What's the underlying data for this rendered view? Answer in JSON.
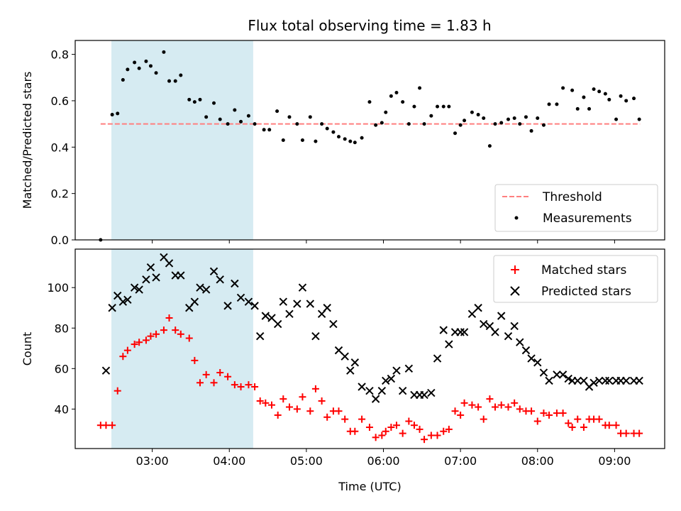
{
  "chart_data": [
    {
      "type": "scatter",
      "title": "Flux total observing time = 1.83 h",
      "xlabel": "",
      "ylabel": "Matched/Predicted stars",
      "xlim": [
        2.0,
        9.65
      ],
      "ylim": [
        0.0,
        0.86
      ],
      "xticks": [
        3,
        4,
        5,
        6,
        7,
        8,
        9
      ],
      "yticks": [
        0.0,
        0.2,
        0.4,
        0.6,
        0.8
      ],
      "ytick_labels": [
        "0.0",
        "0.2",
        "0.4",
        "0.6",
        "0.8"
      ],
      "highlight_span": [
        2.47,
        4.31
      ],
      "legend_position": "lower right",
      "threshold": {
        "name": "Threshold",
        "y": 0.5,
        "x_range": [
          2.33,
          9.33
        ],
        "color": "#ff7f7f"
      },
      "series": [
        {
          "name": "Measurements",
          "color": "#000000",
          "x": [
            2.33,
            2.48,
            2.55,
            2.62,
            2.68,
            2.77,
            2.83,
            2.92,
            2.98,
            3.05,
            3.15,
            3.22,
            3.3,
            3.37,
            3.48,
            3.55,
            3.62,
            3.7,
            3.8,
            3.88,
            3.98,
            4.07,
            4.15,
            4.25,
            4.33,
            4.45,
            4.52,
            4.62,
            4.7,
            4.78,
            4.88,
            4.95,
            5.05,
            5.12,
            5.2,
            5.27,
            5.35,
            5.42,
            5.5,
            5.57,
            5.63,
            5.72,
            5.82,
            5.9,
            5.98,
            6.03,
            6.1,
            6.17,
            6.25,
            6.33,
            6.4,
            6.47,
            6.53,
            6.62,
            6.7,
            6.78,
            6.85,
            6.93,
            7.0,
            7.05,
            7.15,
            7.23,
            7.3,
            7.38,
            7.45,
            7.53,
            7.62,
            7.7,
            7.77,
            7.85,
            7.92,
            8.0,
            8.08,
            8.15,
            8.25,
            8.33,
            8.45,
            8.52,
            8.6,
            8.67,
            8.73,
            8.8,
            8.88,
            8.93,
            9.02,
            9.08,
            9.15,
            9.25,
            9.32
          ],
          "y": [
            0.0,
            0.54,
            0.545,
            0.69,
            0.735,
            0.765,
            0.74,
            0.77,
            0.75,
            0.72,
            0.81,
            0.685,
            0.685,
            0.71,
            0.605,
            0.595,
            0.605,
            0.53,
            0.59,
            0.52,
            0.5,
            0.56,
            0.51,
            0.535,
            0.5,
            0.475,
            0.475,
            0.555,
            0.43,
            0.53,
            0.5,
            0.43,
            0.53,
            0.425,
            0.5,
            0.48,
            0.465,
            0.445,
            0.435,
            0.425,
            0.42,
            0.44,
            0.595,
            0.495,
            0.505,
            0.55,
            0.62,
            0.635,
            0.595,
            0.5,
            0.575,
            0.655,
            0.5,
            0.535,
            0.575,
            0.575,
            0.575,
            0.46,
            0.495,
            0.515,
            0.55,
            0.54,
            0.525,
            0.405,
            0.5,
            0.505,
            0.52,
            0.525,
            0.5,
            0.53,
            0.47,
            0.525,
            0.495,
            0.585,
            0.585,
            0.655,
            0.645,
            0.565,
            0.615,
            0.565,
            0.65,
            0.64,
            0.63,
            0.605,
            0.52,
            0.62,
            0.6,
            0.61,
            0.52
          ]
        }
      ]
    },
    {
      "type": "scatter",
      "title": "",
      "xlabel": "Time (UTC)",
      "ylabel": "Count",
      "xlim": [
        2.0,
        9.65
      ],
      "ylim": [
        20.5,
        119
      ],
      "xticks": [
        3,
        4,
        5,
        6,
        7,
        8,
        9
      ],
      "xtick_labels": [
        "03:00",
        "04:00",
        "05:00",
        "06:00",
        "07:00",
        "08:00",
        "09:00"
      ],
      "yticks": [
        40,
        60,
        80,
        100
      ],
      "ytick_labels": [
        "40",
        "60",
        "80",
        "100"
      ],
      "highlight_span": [
        2.47,
        4.31
      ],
      "legend_position": "upper right",
      "series": [
        {
          "name": "Matched stars",
          "marker": "plus",
          "color": "#ff0000",
          "x": [
            2.33,
            2.4,
            2.48,
            2.55,
            2.62,
            2.68,
            2.77,
            2.83,
            2.92,
            2.98,
            3.05,
            3.15,
            3.22,
            3.3,
            3.37,
            3.48,
            3.55,
            3.62,
            3.7,
            3.8,
            3.88,
            3.98,
            4.07,
            4.15,
            4.25,
            4.33,
            4.4,
            4.47,
            4.55,
            4.63,
            4.7,
            4.78,
            4.88,
            4.95,
            5.05,
            5.12,
            5.2,
            5.27,
            5.35,
            5.42,
            5.5,
            5.57,
            5.63,
            5.72,
            5.82,
            5.9,
            5.98,
            6.03,
            6.1,
            6.17,
            6.25,
            6.33,
            6.4,
            6.47,
            6.53,
            6.62,
            6.7,
            6.78,
            6.85,
            6.93,
            7.0,
            7.05,
            7.15,
            7.23,
            7.3,
            7.38,
            7.45,
            7.53,
            7.62,
            7.7,
            7.77,
            7.85,
            7.92,
            8.0,
            8.08,
            8.15,
            8.25,
            8.33,
            8.4,
            8.45,
            8.52,
            8.6,
            8.67,
            8.73,
            8.8,
            8.88,
            8.93,
            9.02,
            9.08,
            9.15,
            9.25,
            9.32
          ],
          "y": [
            32,
            32,
            32,
            49,
            66,
            69,
            72,
            73,
            74,
            76,
            77,
            79,
            85,
            79,
            77,
            75,
            64,
            53,
            57,
            53,
            58,
            56,
            52,
            51,
            52,
            51,
            44,
            43,
            42,
            37,
            45,
            41,
            40,
            46,
            39,
            50,
            44,
            36,
            39,
            39,
            35,
            29,
            29,
            35,
            31,
            26,
            27,
            29,
            31,
            32,
            28,
            34,
            32,
            30,
            25,
            27,
            27,
            29,
            30,
            39,
            37,
            43,
            42,
            41,
            35,
            45,
            41,
            42,
            41,
            43,
            40,
            39,
            39,
            34,
            38,
            37,
            38,
            38,
            33,
            31,
            35,
            31,
            35,
            35,
            35,
            32,
            32,
            32,
            28,
            28,
            28,
            28
          ],
          "note": ""
        },
        {
          "name": "Predicted stars",
          "marker": "x",
          "color": "#000000",
          "x": [
            2.4,
            2.48,
            2.55,
            2.62,
            2.68,
            2.77,
            2.83,
            2.92,
            2.98,
            3.05,
            3.15,
            3.22,
            3.3,
            3.37,
            3.48,
            3.55,
            3.62,
            3.7,
            3.8,
            3.88,
            3.98,
            4.07,
            4.15,
            4.25,
            4.33,
            4.4,
            4.47,
            4.55,
            4.63,
            4.7,
            4.78,
            4.88,
            4.95,
            5.05,
            5.12,
            5.2,
            5.27,
            5.35,
            5.42,
            5.5,
            5.57,
            5.63,
            5.72,
            5.82,
            5.9,
            5.98,
            6.03,
            6.1,
            6.17,
            6.25,
            6.33,
            6.4,
            6.47,
            6.53,
            6.62,
            6.7,
            6.78,
            6.85,
            6.93,
            7.0,
            7.05,
            7.15,
            7.23,
            7.3,
            7.38,
            7.45,
            7.53,
            7.62,
            7.7,
            7.77,
            7.85,
            7.92,
            8.0,
            8.08,
            8.15,
            8.25,
            8.33,
            8.4,
            8.45,
            8.52,
            8.6,
            8.67,
            8.73,
            8.8,
            8.88,
            8.93,
            9.02,
            9.08,
            9.15,
            9.25,
            9.32
          ],
          "y": [
            59,
            90,
            96,
            93,
            94,
            100,
            99,
            104,
            110,
            105,
            115,
            112,
            106,
            106,
            90,
            93,
            100,
            99,
            108,
            104,
            91,
            102,
            95,
            93,
            91,
            76,
            86,
            85,
            82,
            93,
            87,
            92,
            100,
            92,
            76,
            87,
            90,
            82,
            69,
            66,
            59,
            63,
            51,
            49,
            45,
            49,
            54,
            55,
            59,
            49,
            60,
            47,
            47,
            47,
            48,
            65,
            79,
            72,
            78,
            78,
            78,
            87,
            90,
            82,
            81,
            78,
            86,
            76,
            81,
            73,
            69,
            65,
            63,
            58,
            54,
            57,
            57,
            55,
            54,
            54,
            54,
            51,
            53,
            54,
            54,
            54,
            54,
            54,
            54,
            54,
            54
          ],
          "note": ""
        }
      ]
    }
  ]
}
